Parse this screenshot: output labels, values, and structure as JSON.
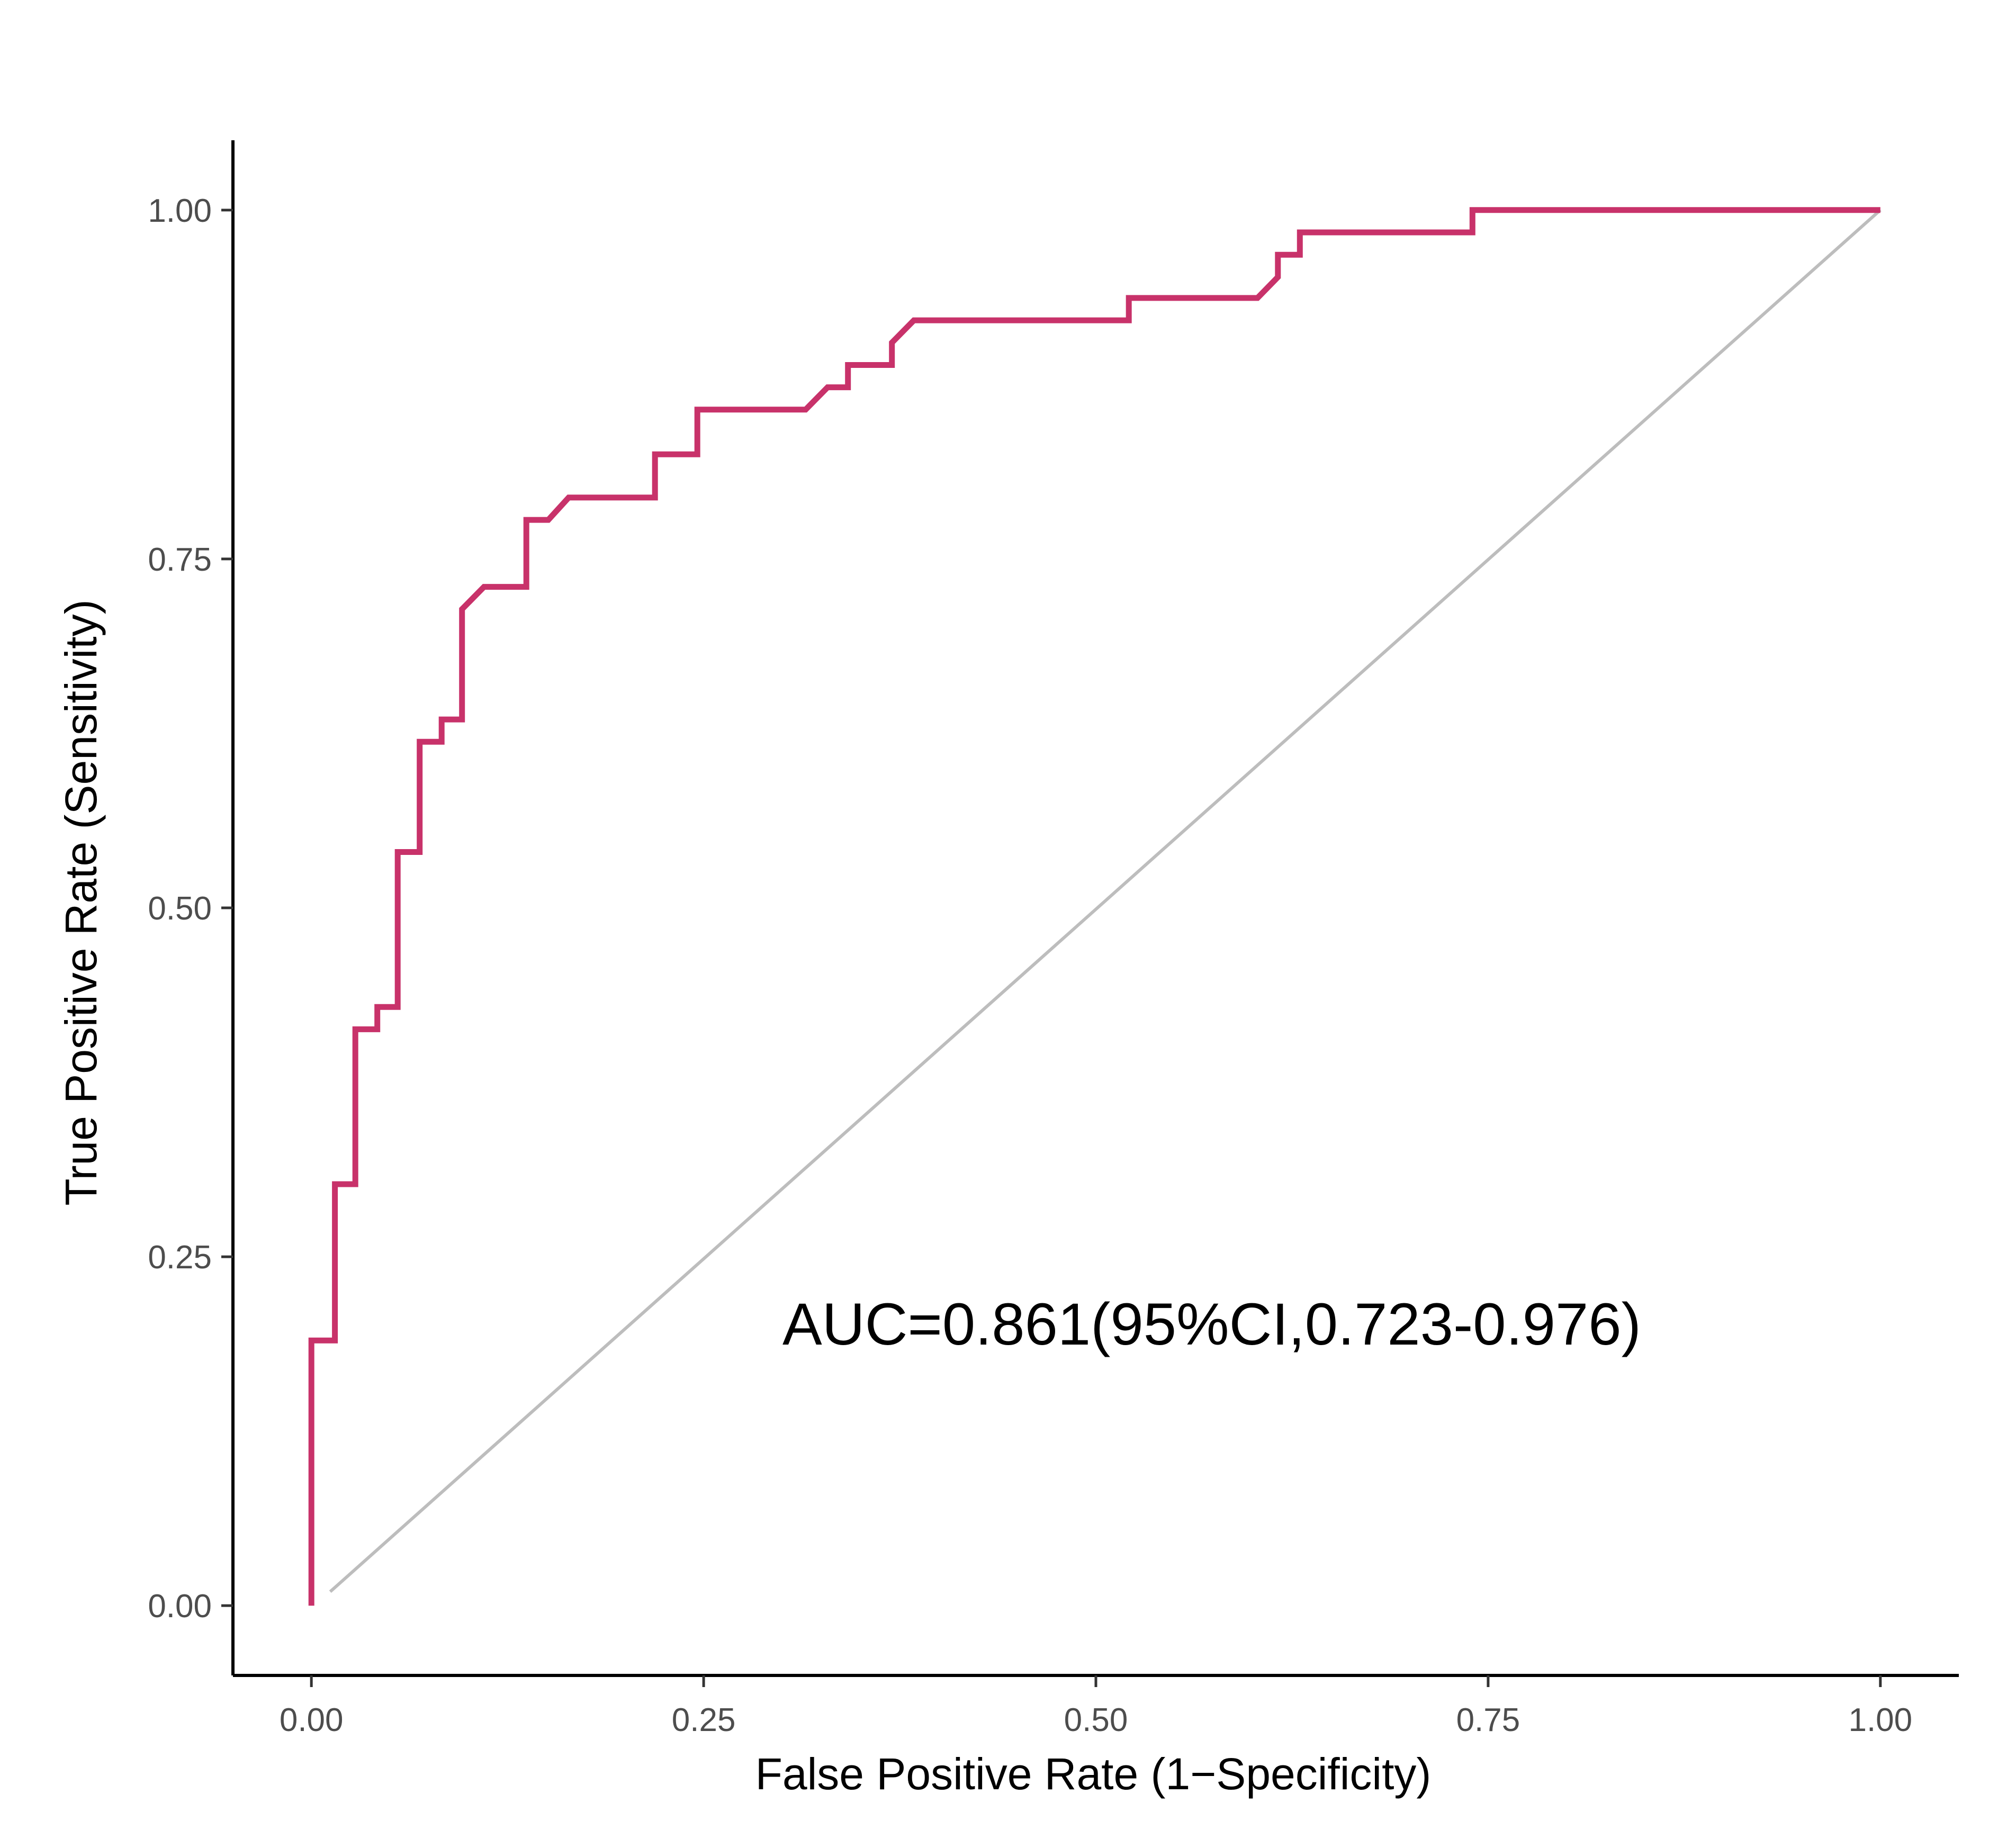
{
  "chart_data": {
    "type": "line",
    "title": "",
    "xlabel": "False Positive Rate (1−Specificity)",
    "ylabel": "True Positive Rate (Sensitivity)",
    "xlim": [
      -0.05,
      1.05
    ],
    "ylim": [
      -0.05,
      1.05
    ],
    "xticks": [
      0,
      0.25,
      0.5,
      0.75,
      1
    ],
    "xtick_labels": [
      "0.00",
      "0.25",
      "0.50",
      "0.75",
      "1.00"
    ],
    "yticks": [
      0,
      0.25,
      0.5,
      0.75,
      1
    ],
    "ytick_labels": [
      "0.00",
      "0.25",
      "0.50",
      "0.75",
      "1.00"
    ],
    "grid": false,
    "legend": "none",
    "annotation": "AUC=0.861(95%CI,0.723-0.976)",
    "colors": {
      "roc": "#c8326a",
      "reference": "#bdbdbd",
      "axis": "#000000"
    },
    "series": [
      {
        "values": [
          [
            0.0,
            0.0
          ],
          [
            0.0,
            0.19
          ],
          [
            0.015,
            0.19
          ],
          [
            0.015,
            0.302
          ],
          [
            0.028,
            0.302
          ],
          [
            0.028,
            0.413
          ],
          [
            0.042,
            0.413
          ],
          [
            0.042,
            0.429
          ],
          [
            0.055,
            0.429
          ],
          [
            0.055,
            0.54
          ],
          [
            0.069,
            0.54
          ],
          [
            0.069,
            0.619
          ],
          [
            0.083,
            0.619
          ],
          [
            0.083,
            0.635
          ],
          [
            0.096,
            0.635
          ],
          [
            0.096,
            0.714
          ],
          [
            0.11,
            0.73
          ],
          [
            0.137,
            0.73
          ],
          [
            0.137,
            0.778
          ],
          [
            0.151,
            0.778
          ],
          [
            0.164,
            0.794
          ],
          [
            0.219,
            0.794
          ],
          [
            0.219,
            0.825
          ],
          [
            0.246,
            0.825
          ],
          [
            0.246,
            0.857
          ],
          [
            0.315,
            0.857
          ],
          [
            0.329,
            0.873
          ],
          [
            0.342,
            0.873
          ],
          [
            0.342,
            0.889
          ],
          [
            0.37,
            0.889
          ],
          [
            0.37,
            0.905
          ],
          [
            0.384,
            0.921
          ],
          [
            0.521,
            0.921
          ],
          [
            0.521,
            0.937
          ],
          [
            0.603,
            0.937
          ],
          [
            0.616,
            0.952
          ],
          [
            0.616,
            0.968
          ],
          [
            0.63,
            0.968
          ],
          [
            0.63,
            0.984
          ],
          [
            0.74,
            0.984
          ],
          [
            0.74,
            1.0
          ],
          [
            1.0,
            1.0
          ]
        ]
      },
      {
        "values": [
          [
            0.012,
            0.01
          ],
          [
            1.0,
            1.0
          ]
        ]
      }
    ]
  }
}
